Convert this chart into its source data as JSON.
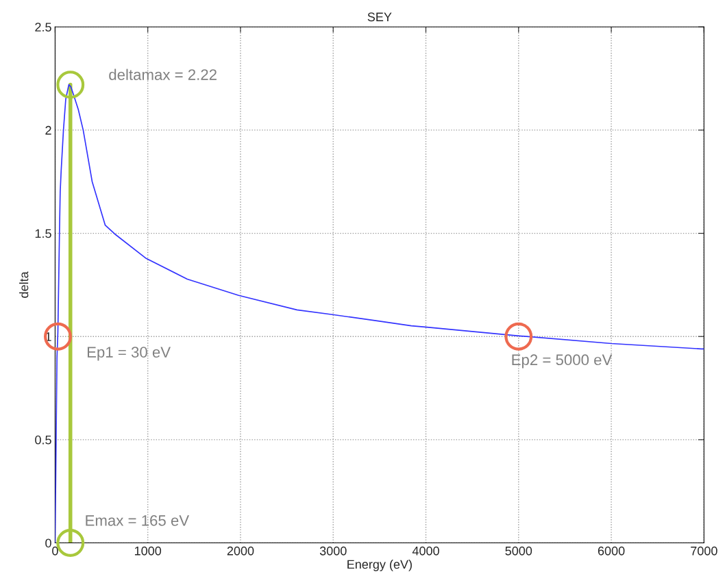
{
  "chart_data": {
    "type": "line",
    "title": "SEY",
    "xlabel": "Energy (eV)",
    "ylabel": "delta",
    "series": [
      {
        "color": "#3333ff",
        "x": [
          0,
          20,
          30,
          40,
          47,
          55,
          65,
          90,
          115,
          148,
          170,
          200,
          250,
          303,
          400,
          540,
          643,
          983,
          1426,
          1981,
          2609,
          2993,
          3474,
          3843,
          3991,
          5004,
          6002,
          6970,
          7000
        ],
        "values": [
          0,
          0.9,
          1.02,
          1.3,
          1.5,
          1.7,
          1.8,
          2.0,
          2.15,
          2.22,
          2.21,
          2.17,
          2.1,
          2.0,
          1.75,
          1.54,
          1.497,
          1.378,
          1.278,
          1.199,
          1.129,
          1.106,
          1.076,
          1.052,
          1.046,
          1.003,
          0.966,
          0.94,
          0.94
        ]
      },
      {
        "color": "#a8c83c",
        "x": [
          165,
          165
        ],
        "values": [
          0,
          2.22
        ]
      },
      {
        "type": "scatter",
        "color": "#a8c83c",
        "x": [
          165,
          165
        ],
        "values": [
          2.22,
          0
        ]
      },
      {
        "type": "scatter",
        "color": "#ee6a50",
        "x": [
          30,
          5000
        ],
        "values": [
          1,
          1
        ]
      }
    ],
    "annotations": [
      {
        "text": "deltamax = 2.22",
        "x": 165,
        "y": 2.22
      },
      {
        "text": "Ep1 = 30 eV",
        "x": 30,
        "y": 1
      },
      {
        "text": "Ep2 = 5000 eV",
        "x": 5000,
        "y": 1
      },
      {
        "text": "Emax = 165 eV",
        "x": 165,
        "y": 0
      }
    ],
    "xlim": [
      0,
      7000
    ],
    "xticks": [
      0,
      1000,
      2000,
      3000,
      4000,
      5000,
      6000,
      7000
    ],
    "ylim": [
      0,
      2.5
    ],
    "yticks": [
      0,
      0.5,
      1,
      1.5,
      2,
      2.5
    ],
    "grid": true
  }
}
